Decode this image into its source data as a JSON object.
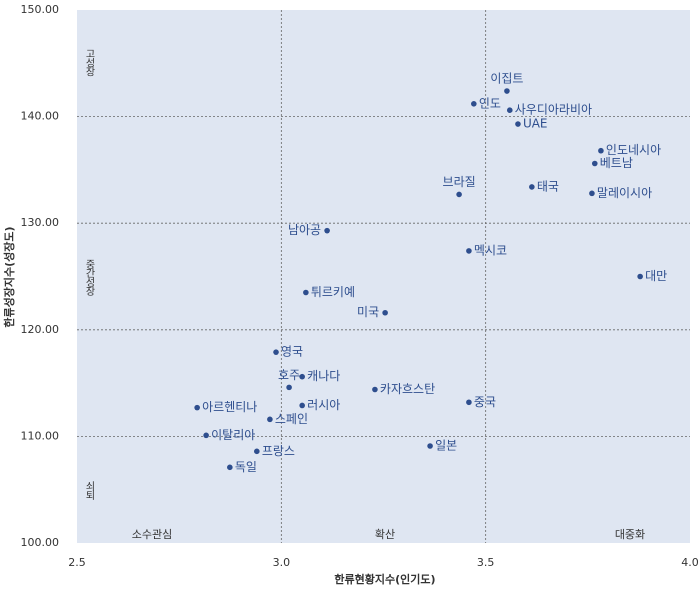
{
  "chart_data": {
    "type": "scatter",
    "xlabel": "한류현황지수(인기도)",
    "ylabel": "한류성장지수(성장도)",
    "point_labels": [
      "이집트",
      "인도",
      "사우디아라비아",
      "UAE",
      "인도네시아",
      "베트남",
      "태국",
      "말레이시아",
      "브라질",
      "남아공",
      "멕시코",
      "대만",
      "튀르키예",
      "미국",
      "영국",
      "캐나다",
      "호주",
      "카자흐스탄",
      "중국",
      "아르헨티나",
      "러시아",
      "스페인",
      "이탈리아",
      "일본",
      "프랑스",
      "독일"
    ],
    "x": [
      3.552,
      3.471,
      3.559,
      3.579,
      3.782,
      3.767,
      3.613,
      3.76,
      3.435,
      3.112,
      3.459,
      3.878,
      3.06,
      3.254,
      2.987,
      3.051,
      3.019,
      3.229,
      3.459,
      2.794,
      3.051,
      2.972,
      2.816,
      3.364,
      2.94,
      2.874
    ],
    "values": [
      142.4,
      141.2,
      140.6,
      139.3,
      136.8,
      135.6,
      133.4,
      132.8,
      132.7,
      129.3,
      127.4,
      125.0,
      123.5,
      121.6,
      117.9,
      115.6,
      114.6,
      114.4,
      113.2,
      112.7,
      112.9,
      111.6,
      110.1,
      109.1,
      108.6,
      107.1
    ],
    "color": "#2e4e8e",
    "xlim": [
      2.5,
      4.0
    ],
    "ylim": [
      100,
      150
    ],
    "xticks": [
      2.5,
      {
        "value": 3.0,
        "label": "3.0"
      },
      3.5,
      {
        "value": 4.0,
        "label": "4.0"
      }
    ],
    "yticks": [
      {
        "value": 100,
        "label": "100.00"
      },
      {
        "value": 110,
        "label": "110.00"
      },
      {
        "value": 120,
        "label": "120.00"
      },
      {
        "value": 130,
        "label": "130.00"
      },
      {
        "value": 140,
        "label": "140.00"
      },
      {
        "value": 150,
        "label": "150.00"
      }
    ],
    "grid": true,
    "region_labels_y": [
      "고성장",
      "중간성장",
      "쇠퇴"
    ],
    "region_labels_x": [
      "소수관심",
      "확산",
      "대중화"
    ]
  }
}
